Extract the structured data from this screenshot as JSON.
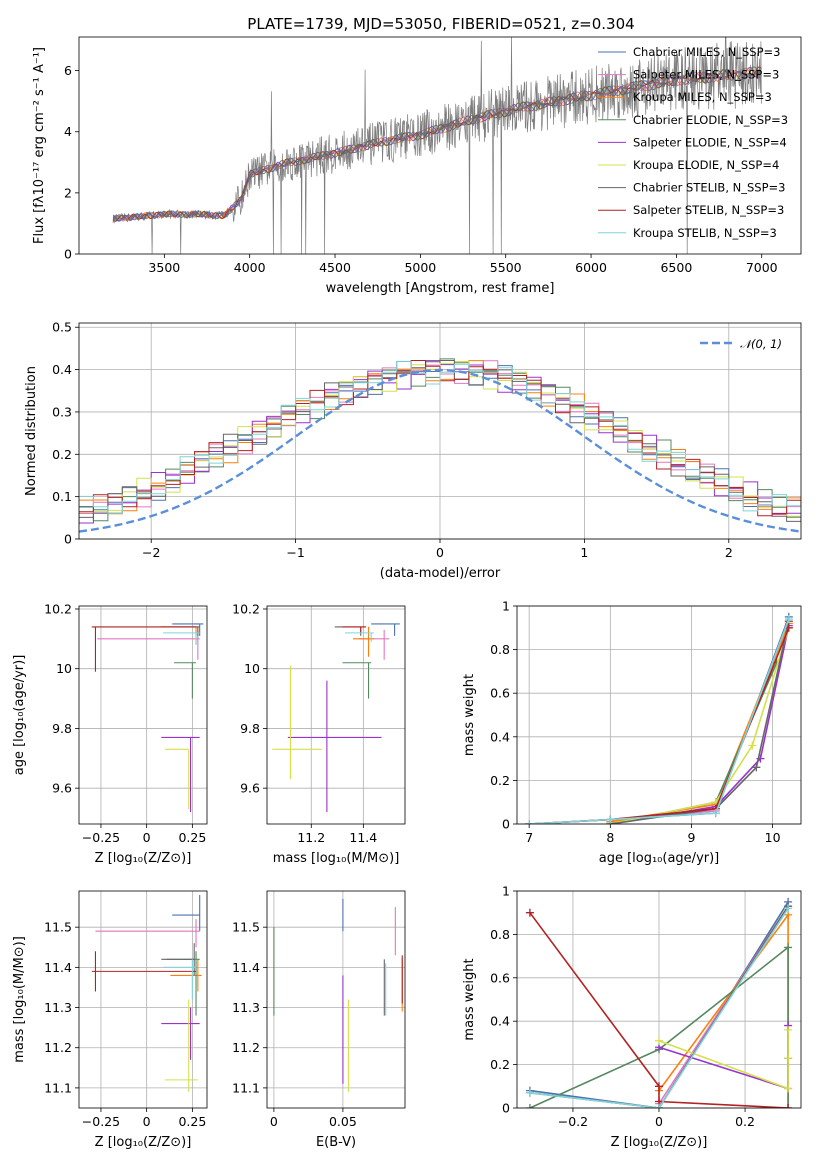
{
  "title": "PLATE=1739, MJD=53050, FIBERID=0521, z=0.304",
  "colors": {
    "chabrier_miles": "#4c72b0",
    "salpeter_miles": "#e377c2",
    "kroupa_miles": "#ff7f0e",
    "chabrier_elodie": "#55885f",
    "salpeter_elodie": "#9933cc",
    "kroupa_elodie": "#d4e04a",
    "chabrier_stelib": "#666666",
    "salpeter_stelib": "#b22222",
    "kroupa_stelib": "#7fd3d9",
    "normal_curve": "#5b8fd9"
  },
  "chart_data": [
    {
      "id": "spectrum",
      "type": "line",
      "xlabel": "wavelength [Angstrom, rest frame]",
      "ylabel": "Flux [fλ10⁻¹⁷ erg cm⁻² s⁻¹ A⁻¹]",
      "xlim": [
        3000,
        7230
      ],
      "ylim": [
        0,
        7.1
      ],
      "xticks": [
        3500,
        4000,
        4500,
        5000,
        5500,
        6000,
        6500,
        7000
      ],
      "yticks": [
        0,
        2,
        4,
        6
      ],
      "grid": false,
      "legend_position": "upper right",
      "series": [
        {
          "name": "Chabrier MILES, N_SSP=3",
          "key": "chabrier_miles"
        },
        {
          "name": "Salpeter MILES, N_SSP=3",
          "key": "salpeter_miles"
        },
        {
          "name": "Kroupa MILES, N_SSP=3",
          "key": "kroupa_miles"
        },
        {
          "name": "Chabrier ELODIE, N_SSP=3",
          "key": "chabrier_elodie"
        },
        {
          "name": "Salpeter ELODIE, N_SSP=4",
          "key": "salpeter_elodie"
        },
        {
          "name": "Kroupa ELODIE, N_SSP=4",
          "key": "kroupa_elodie"
        },
        {
          "name": "Chabrier STELIB, N_SSP=3",
          "key": "chabrier_stelib"
        },
        {
          "name": "Salpeter STELIB, N_SSP=3",
          "key": "salpeter_stelib"
        },
        {
          "name": "Kroupa STELIB, N_SSP=3",
          "key": "kroupa_stelib"
        }
      ],
      "continuum": {
        "x": [
          3200,
          3500,
          3700,
          3850,
          3950,
          4000,
          4200,
          4500,
          4800,
          5000,
          5300,
          5600,
          5900,
          6200,
          6500,
          6800,
          7000
        ],
        "y": [
          1.15,
          1.3,
          1.3,
          1.25,
          1.8,
          2.6,
          2.95,
          3.3,
          3.7,
          3.9,
          4.4,
          4.8,
          5.1,
          5.4,
          5.7,
          5.85,
          5.95
        ]
      }
    },
    {
      "id": "residuals",
      "type": "line",
      "xlabel": "(data-model)/error",
      "ylabel": "Normed distribution",
      "xlim": [
        -2.5,
        2.5
      ],
      "ylim": [
        0,
        0.51
      ],
      "xticks": [
        -2,
        -1,
        0,
        1,
        2
      ],
      "yticks": [
        0.0,
        0.1,
        0.2,
        0.3,
        0.4,
        0.5
      ],
      "grid": true,
      "legend": "𝒩(0, 1)",
      "legend_position": "upper right",
      "bin_width": 0.1,
      "hist_center": [
        0.028,
        0.03,
        0.03,
        0.04,
        0.055,
        0.065,
        0.07,
        0.08,
        0.095,
        0.11,
        0.125,
        0.14,
        0.16,
        0.18,
        0.2,
        0.215,
        0.235,
        0.255,
        0.27,
        0.29,
        0.305,
        0.32,
        0.34,
        0.35,
        0.365,
        0.375,
        0.38,
        0.39,
        0.395,
        0.4,
        0.405,
        0.4,
        0.395,
        0.39,
        0.38,
        0.37,
        0.36,
        0.345,
        0.33,
        0.31,
        0.29,
        0.275,
        0.255,
        0.235,
        0.215,
        0.2,
        0.18,
        0.16,
        0.145,
        0.13,
        0.115,
        0.1,
        0.085,
        0.075,
        0.065,
        0.055,
        0.05,
        0.04,
        0.035,
        0.03
      ]
    },
    {
      "id": "age_vs_Z",
      "type": "scatter",
      "xlabel": "Z [log₁₀(Z/Z⊙)]",
      "ylabel": "age  [log₁₀(age/yr)]",
      "xlim": [
        -0.37,
        0.33
      ],
      "ylim": [
        9.48,
        10.21
      ],
      "xticks": [
        -0.25,
        0.0,
        0.25
      ],
      "yticks": [
        9.6,
        9.8,
        10.0,
        10.2
      ],
      "grid": true,
      "points": [
        {
          "key": "chabrier_miles",
          "x": 0.29,
          "y": 10.15,
          "xerr": [
            0.15,
            0.02
          ],
          "yerr": [
            0.04,
            0.0
          ]
        },
        {
          "key": "salpeter_miles",
          "x": 0.28,
          "y": 10.1,
          "xerr": [
            0.55,
            0.01
          ],
          "yerr": [
            0.07,
            0.03
          ]
        },
        {
          "key": "kroupa_miles",
          "x": 0.27,
          "y": 10.14,
          "xerr": [
            0.2,
            0.02
          ],
          "yerr": [
            0.06,
            0.0
          ]
        },
        {
          "key": "chabrier_elodie",
          "x": 0.25,
          "y": 10.02,
          "xerr": [
            0.1,
            0.02
          ],
          "yerr": [
            0.12,
            0.0
          ]
        },
        {
          "key": "salpeter_elodie",
          "x": 0.24,
          "y": 9.77,
          "xerr": [
            0.16,
            0.05
          ],
          "yerr": [
            0.25,
            0.0
          ]
        },
        {
          "key": "kroupa_elodie",
          "x": 0.23,
          "y": 9.73,
          "xerr": [
            0.13,
            0.0
          ],
          "yerr": [
            0.2,
            0.0
          ]
        },
        {
          "key": "chabrier_stelib",
          "x": 0.28,
          "y": 10.14,
          "xerr": [
            0.2,
            0.01
          ],
          "yerr": [
            0.03,
            0.0
          ]
        },
        {
          "key": "salpeter_stelib",
          "x": -0.28,
          "y": 10.14,
          "xerr": [
            0.02,
            0.55
          ],
          "yerr": [
            0.15,
            0.0
          ]
        },
        {
          "key": "kroupa_stelib",
          "x": 0.27,
          "y": 10.12,
          "xerr": [
            0.18,
            0.02
          ],
          "yerr": [
            0.04,
            0.0
          ]
        }
      ]
    },
    {
      "id": "age_vs_mass",
      "type": "scatter",
      "xlabel": "mass [log₁₀(M/M⊙)]",
      "ylabel": "",
      "xlim": [
        11.03,
        11.56
      ],
      "ylim": [
        9.48,
        10.21
      ],
      "xticks": [
        11.2,
        11.4
      ],
      "yticks": [
        9.6,
        9.8,
        10.0,
        10.2
      ],
      "grid": true,
      "points": [
        {
          "key": "chabrier_miles",
          "x": 11.52,
          "y": 10.15,
          "xerr": [
            0.09,
            0.02
          ],
          "yerr": [
            0.04,
            0.0
          ]
        },
        {
          "key": "salpeter_miles",
          "x": 11.48,
          "y": 10.1,
          "xerr": [
            0.1,
            0.02
          ],
          "yerr": [
            0.07,
            0.03
          ]
        },
        {
          "key": "kroupa_miles",
          "x": 11.42,
          "y": 10.1,
          "xerr": [
            0.06,
            0.02
          ],
          "yerr": [
            0.06,
            0.04
          ]
        },
        {
          "key": "chabrier_elodie",
          "x": 11.42,
          "y": 10.02,
          "xerr": [
            0.1,
            0.01
          ],
          "yerr": [
            0.12,
            0.0
          ]
        },
        {
          "key": "salpeter_elodie",
          "x": 11.26,
          "y": 9.77,
          "xerr": [
            0.15,
            0.21
          ],
          "yerr": [
            0.25,
            0.19
          ]
        },
        {
          "key": "kroupa_elodie",
          "x": 11.12,
          "y": 9.73,
          "xerr": [
            0.07,
            0.12
          ],
          "yerr": [
            0.1,
            0.28
          ]
        },
        {
          "key": "chabrier_stelib",
          "x": 11.39,
          "y": 10.14,
          "xerr": [
            0.1,
            0.02
          ],
          "yerr": [
            0.03,
            0.0
          ]
        },
        {
          "key": "salpeter_stelib",
          "x": 11.39,
          "y": 10.14,
          "xerr": [
            0.07,
            0.02
          ],
          "yerr": [
            0.02,
            0.0
          ]
        },
        {
          "key": "kroupa_stelib",
          "x": 11.43,
          "y": 10.12,
          "xerr": [
            0.1,
            0.01
          ],
          "yerr": [
            0.03,
            0.0
          ]
        }
      ]
    },
    {
      "id": "weight_vs_age",
      "type": "line",
      "xlabel": "age  [log₁₀(age/yr)]",
      "ylabel": "mass weight",
      "xlim": [
        6.85,
        10.35
      ],
      "ylim": [
        0,
        1.0
      ],
      "xticks": [
        7,
        8,
        9,
        10
      ],
      "yticks": [
        0.0,
        0.2,
        0.4,
        0.6,
        0.8,
        1.0
      ],
      "grid": true,
      "series": [
        {
          "key": "chabrier_miles",
          "x": [
            7.0,
            8.0,
            9.3,
            10.2
          ],
          "y": [
            0.0,
            0.02,
            0.05,
            0.95
          ]
        },
        {
          "key": "salpeter_miles",
          "x": [
            7.0,
            8.0,
            9.3,
            10.2
          ],
          "y": [
            0.0,
            0.02,
            0.06,
            0.93
          ]
        },
        {
          "key": "kroupa_miles",
          "x": [
            8.0,
            9.3,
            10.2
          ],
          "y": [
            0.01,
            0.09,
            0.92
          ]
        },
        {
          "key": "chabrier_elodie",
          "x": [
            8.0,
            9.3,
            10.05
          ],
          "y": [
            0.0,
            0.1,
            0.74
          ]
        },
        {
          "key": "salpeter_elodie",
          "x": [
            8.0,
            9.3,
            9.85,
            10.2
          ],
          "y": [
            0.0,
            0.08,
            0.3,
            0.91
          ]
        },
        {
          "key": "kroupa_elodie",
          "x": [
            8.0,
            9.3,
            9.75,
            10.2
          ],
          "y": [
            0.0,
            0.1,
            0.36,
            0.9
          ]
        },
        {
          "key": "chabrier_stelib",
          "x": [
            8.0,
            9.3,
            9.8,
            10.2
          ],
          "y": [
            0.0,
            0.07,
            0.26,
            0.93
          ]
        },
        {
          "key": "salpeter_stelib",
          "x": [
            7.0,
            8.0,
            9.3,
            10.2
          ],
          "y": [
            0.0,
            0.02,
            0.07,
            0.9
          ]
        },
        {
          "key": "kroupa_stelib",
          "x": [
            7.0,
            8.0,
            9.3,
            10.2
          ],
          "y": [
            0.0,
            0.02,
            0.05,
            0.94
          ]
        }
      ]
    },
    {
      "id": "mass_vs_Z",
      "type": "scatter",
      "xlabel": "Z [log₁₀(Z/Z⊙)]",
      "ylabel": "mass [log₁₀(M/M⊙)]",
      "xlim": [
        -0.37,
        0.33
      ],
      "ylim": [
        11.05,
        11.59
      ],
      "xticks": [
        -0.25,
        0.0,
        0.25
      ],
      "yticks": [
        11.1,
        11.2,
        11.3,
        11.4,
        11.5
      ],
      "grid": true,
      "points": [
        {
          "key": "chabrier_miles",
          "x": 0.29,
          "y": 11.53,
          "xerr": [
            0.15,
            0.0
          ],
          "yerr": [
            0.04,
            0.05
          ]
        },
        {
          "key": "salpeter_miles",
          "x": 0.27,
          "y": 11.49,
          "xerr": [
            0.55,
            0.02
          ],
          "yerr": [
            0.04,
            0.03
          ]
        },
        {
          "key": "kroupa_miles",
          "x": 0.28,
          "y": 11.38,
          "xerr": [
            0.15,
            0.02
          ],
          "yerr": [
            0.04,
            0.04
          ]
        },
        {
          "key": "chabrier_elodie",
          "x": 0.27,
          "y": 11.42,
          "xerr": [
            0.16,
            0.02
          ],
          "yerr": [
            0.14,
            0.02
          ]
        },
        {
          "key": "salpeter_elodie",
          "x": 0.24,
          "y": 11.26,
          "xerr": [
            0.16,
            0.05
          ],
          "yerr": [
            0.09,
            0.04
          ]
        },
        {
          "key": "kroupa_elodie",
          "x": 0.23,
          "y": 11.12,
          "xerr": [
            0.13,
            0.05
          ],
          "yerr": [
            0.03,
            0.2
          ]
        },
        {
          "key": "chabrier_stelib",
          "x": 0.26,
          "y": 11.42,
          "xerr": [
            0.18,
            0.0
          ],
          "yerr": [
            0.04,
            0.04
          ]
        },
        {
          "key": "salpeter_stelib",
          "x": -0.28,
          "y": 11.39,
          "xerr": [
            0.02,
            0.55
          ],
          "yerr": [
            0.05,
            0.05
          ]
        },
        {
          "key": "kroupa_stelib",
          "x": 0.25,
          "y": 11.4,
          "xerr": [
            0.16,
            0.02
          ],
          "yerr": [
            0.08,
            0.02
          ]
        }
      ]
    },
    {
      "id": "mass_vs_ebv",
      "type": "scatter",
      "xlabel": "E(B-V)",
      "ylabel": "",
      "xlim": [
        -0.005,
        0.095
      ],
      "ylim": [
        11.05,
        11.59
      ],
      "xticks": [
        0.0,
        0.05
      ],
      "yticks": [
        11.1,
        11.2,
        11.3,
        11.4,
        11.5
      ],
      "grid": true,
      "points": [
        {
          "key": "chabrier_miles",
          "x": 0.05,
          "y": 11.53,
          "xerr": [
            0,
            0
          ],
          "yerr": [
            0.04,
            0.04
          ]
        },
        {
          "key": "salpeter_miles",
          "x": 0.088,
          "y": 11.49,
          "xerr": [
            0,
            0
          ],
          "yerr": [
            0.06,
            0.06
          ]
        },
        {
          "key": "kroupa_miles",
          "x": 0.093,
          "y": 11.38,
          "xerr": [
            0,
            0
          ],
          "yerr": [
            0.09,
            0.04
          ]
        },
        {
          "key": "chabrier_elodie",
          "x": 0.0,
          "y": 11.42,
          "xerr": [
            0,
            0
          ],
          "yerr": [
            0.14,
            0.08
          ]
        },
        {
          "key": "salpeter_elodie",
          "x": 0.05,
          "y": 11.26,
          "xerr": [
            0,
            0
          ],
          "yerr": [
            0.15,
            0.12
          ]
        },
        {
          "key": "kroupa_elodie",
          "x": 0.054,
          "y": 11.12,
          "xerr": [
            0,
            0
          ],
          "yerr": [
            0.03,
            0.2
          ]
        },
        {
          "key": "chabrier_stelib",
          "x": 0.08,
          "y": 11.38,
          "xerr": [
            0,
            0
          ],
          "yerr": [
            0.1,
            0.04
          ]
        },
        {
          "key": "salpeter_stelib",
          "x": 0.093,
          "y": 11.36,
          "xerr": [
            0,
            0
          ],
          "yerr": [
            0.05,
            0.07
          ]
        },
        {
          "key": "kroupa_stelib",
          "x": 0.081,
          "y": 11.35,
          "xerr": [
            0,
            0
          ],
          "yerr": [
            0.07,
            0.06
          ]
        }
      ]
    },
    {
      "id": "weight_vs_Z",
      "type": "line",
      "xlabel": "Z [log₁₀(Z/Z⊙)]",
      "ylabel": "mass weight",
      "xlim": [
        -0.33,
        0.33
      ],
      "ylim": [
        0,
        1.0
      ],
      "xticks": [
        -0.2,
        0.0,
        0.2
      ],
      "yticks": [
        0.0,
        0.2,
        0.4,
        0.6,
        0.8,
        1.0
      ],
      "grid": true,
      "series": [
        {
          "key": "chabrier_miles",
          "x": [
            -0.3,
            0.0,
            0.3
          ],
          "y": [
            0.08,
            0.0,
            0.95
          ]
        },
        {
          "key": "salpeter_miles",
          "x": [
            0.0,
            0.3
          ],
          "y": [
            0.02,
            0.93
          ]
        },
        {
          "key": "kroupa_miles",
          "x": [
            0.0,
            0.3,
            0.3
          ],
          "y": [
            0.08,
            0.89,
            0.0
          ]
        },
        {
          "key": "chabrier_elodie",
          "x": [
            -0.3,
            0.0,
            0.3,
            0.3
          ],
          "y": [
            0.0,
            0.27,
            0.74,
            0.0
          ]
        },
        {
          "key": "salpeter_elodie",
          "x": [
            0.0,
            0.3,
            0.3,
            0.3
          ],
          "y": [
            0.28,
            0.09,
            0.38,
            0.23
          ]
        },
        {
          "key": "kroupa_elodie",
          "x": [
            0.0,
            0.3,
            0.3,
            0.3
          ],
          "y": [
            0.31,
            0.09,
            0.36,
            0.23
          ]
        },
        {
          "key": "chabrier_stelib",
          "x": [
            -0.3,
            0.0,
            0.3
          ],
          "y": [
            0.07,
            0.0,
            0.93
          ]
        },
        {
          "key": "salpeter_stelib",
          "x": [
            -0.3,
            0.0,
            0.0,
            0.3
          ],
          "y": [
            0.9,
            0.1,
            0.03,
            0.0
          ]
        },
        {
          "key": "kroupa_stelib",
          "x": [
            -0.3,
            0.0,
            0.3
          ],
          "y": [
            0.07,
            0.0,
            0.92
          ]
        }
      ]
    }
  ]
}
